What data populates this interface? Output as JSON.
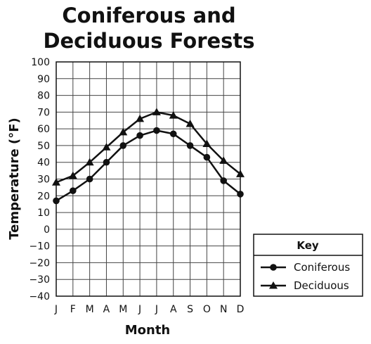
{
  "chart_data": {
    "type": "line",
    "title_line1": "Coniferous and",
    "title_line2": "Deciduous Forests",
    "xlabel": "Month",
    "ylabel": "Temperature (°F)",
    "categories": [
      "J",
      "F",
      "M",
      "A",
      "M",
      "J",
      "J",
      "A",
      "S",
      "O",
      "N",
      "D"
    ],
    "yticks": [
      "100",
      "90",
      "80",
      "70",
      "60",
      "50",
      "40",
      "30",
      "20",
      "10",
      "0",
      "−10",
      "−20",
      "−30",
      "−40"
    ],
    "ylim": [
      -40,
      100
    ],
    "ystep": 10,
    "grid": true,
    "legend": {
      "title": "Key",
      "placement": "bottom-right",
      "entries": [
        "Coniferous",
        "Deciduous"
      ]
    },
    "series": [
      {
        "name": "Coniferous",
        "marker": "circle",
        "values": [
          17,
          23,
          30,
          40,
          50,
          56,
          59,
          57,
          50,
          43,
          29,
          21
        ]
      },
      {
        "name": "Deciduous",
        "marker": "triangle",
        "values": [
          28,
          32,
          40,
          49,
          58,
          66,
          70,
          68,
          63,
          51,
          41,
          33
        ]
      }
    ],
    "colors": {
      "line": "#111111",
      "grid": "#444444",
      "background": "#ffffff"
    }
  }
}
